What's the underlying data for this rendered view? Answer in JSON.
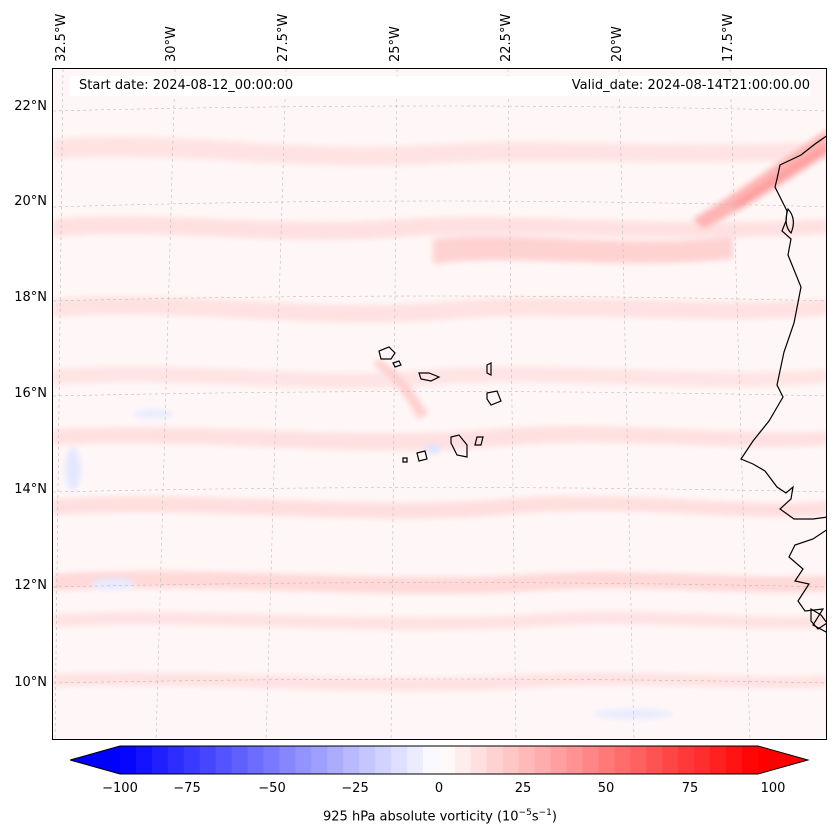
{
  "info": {
    "start_date": "Start date: 2024-08-12_00:00:00",
    "valid_date": "Valid_date: 2024-08-14T21:00:00.00"
  },
  "longitude_labels": [
    "32.5°W",
    "30°W",
    "27.5°W",
    "25°W",
    "22.5°W",
    "20°W",
    "17.5°W"
  ],
  "latitude_labels": [
    "22°N",
    "20°N",
    "18°N",
    "16°N",
    "14°N",
    "12°N",
    "10°N"
  ],
  "colorbar": {
    "ticks": [
      "−100",
      "−75",
      "−50",
      "−25",
      "0",
      "25",
      "50",
      "75",
      "100"
    ],
    "label_prefix": "925 hPa absolute vorticity (10",
    "exp1": "−5",
    "middle": "s",
    "exp2": "−1",
    "label_suffix": ")",
    "min": -100,
    "max": 100,
    "step": 5,
    "cmap": "bwr"
  },
  "colors": {
    "min": "#0000ff",
    "mid": "#ffffff",
    "max": "#ff0000",
    "coastline": "#000000",
    "gridline": "#bdbdbd"
  }
}
